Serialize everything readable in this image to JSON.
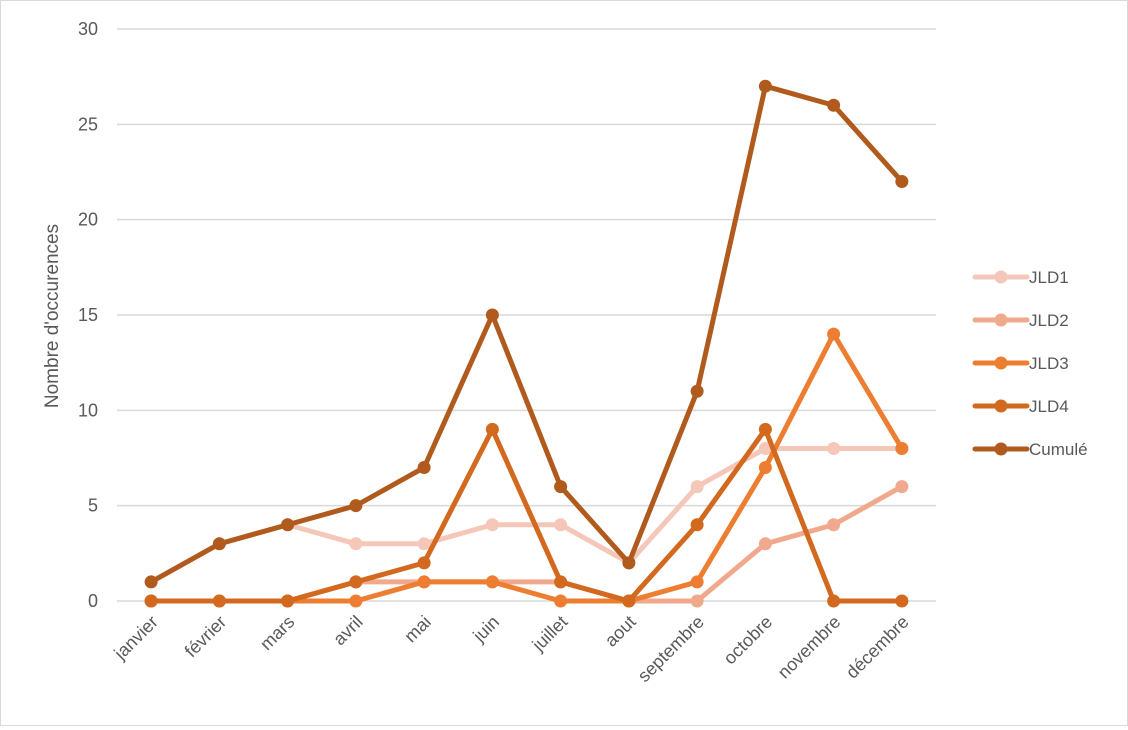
{
  "chart_data": {
    "type": "line",
    "title": "",
    "xlabel": "",
    "ylabel": "Nombre d'occurences",
    "ylim": [
      0,
      30
    ],
    "yticks": [
      0,
      5,
      10,
      15,
      20,
      25,
      30
    ],
    "grid": true,
    "legend_position": "right",
    "categories": [
      "janvier",
      "février",
      "mars",
      "avril",
      "mai",
      "juin",
      "juillet",
      "aout",
      "septembre",
      "octobre",
      "novembre",
      "décembre"
    ],
    "series": [
      {
        "name": "JLD1",
        "color": "#F4C7B8",
        "values": [
          1,
          3,
          4,
          3,
          3,
          4,
          4,
          2,
          6,
          8,
          8,
          8
        ]
      },
      {
        "name": "JLD2",
        "color": "#F0A98C",
        "values": [
          0,
          0,
          0,
          1,
          1,
          1,
          1,
          0,
          0,
          3,
          4,
          6
        ]
      },
      {
        "name": "JLD3",
        "color": "#ED7D31",
        "values": [
          0,
          0,
          0,
          0,
          1,
          1,
          0,
          0,
          1,
          7,
          14,
          8
        ]
      },
      {
        "name": "JLD4",
        "color": "#D2691F",
        "values": [
          0,
          0,
          0,
          1,
          2,
          9,
          1,
          0,
          4,
          9,
          0,
          0
        ]
      },
      {
        "name": "Cumulé",
        "color": "#B15A1E",
        "values": [
          1,
          3,
          4,
          5,
          7,
          15,
          6,
          2,
          11,
          27,
          26,
          22
        ]
      }
    ]
  }
}
